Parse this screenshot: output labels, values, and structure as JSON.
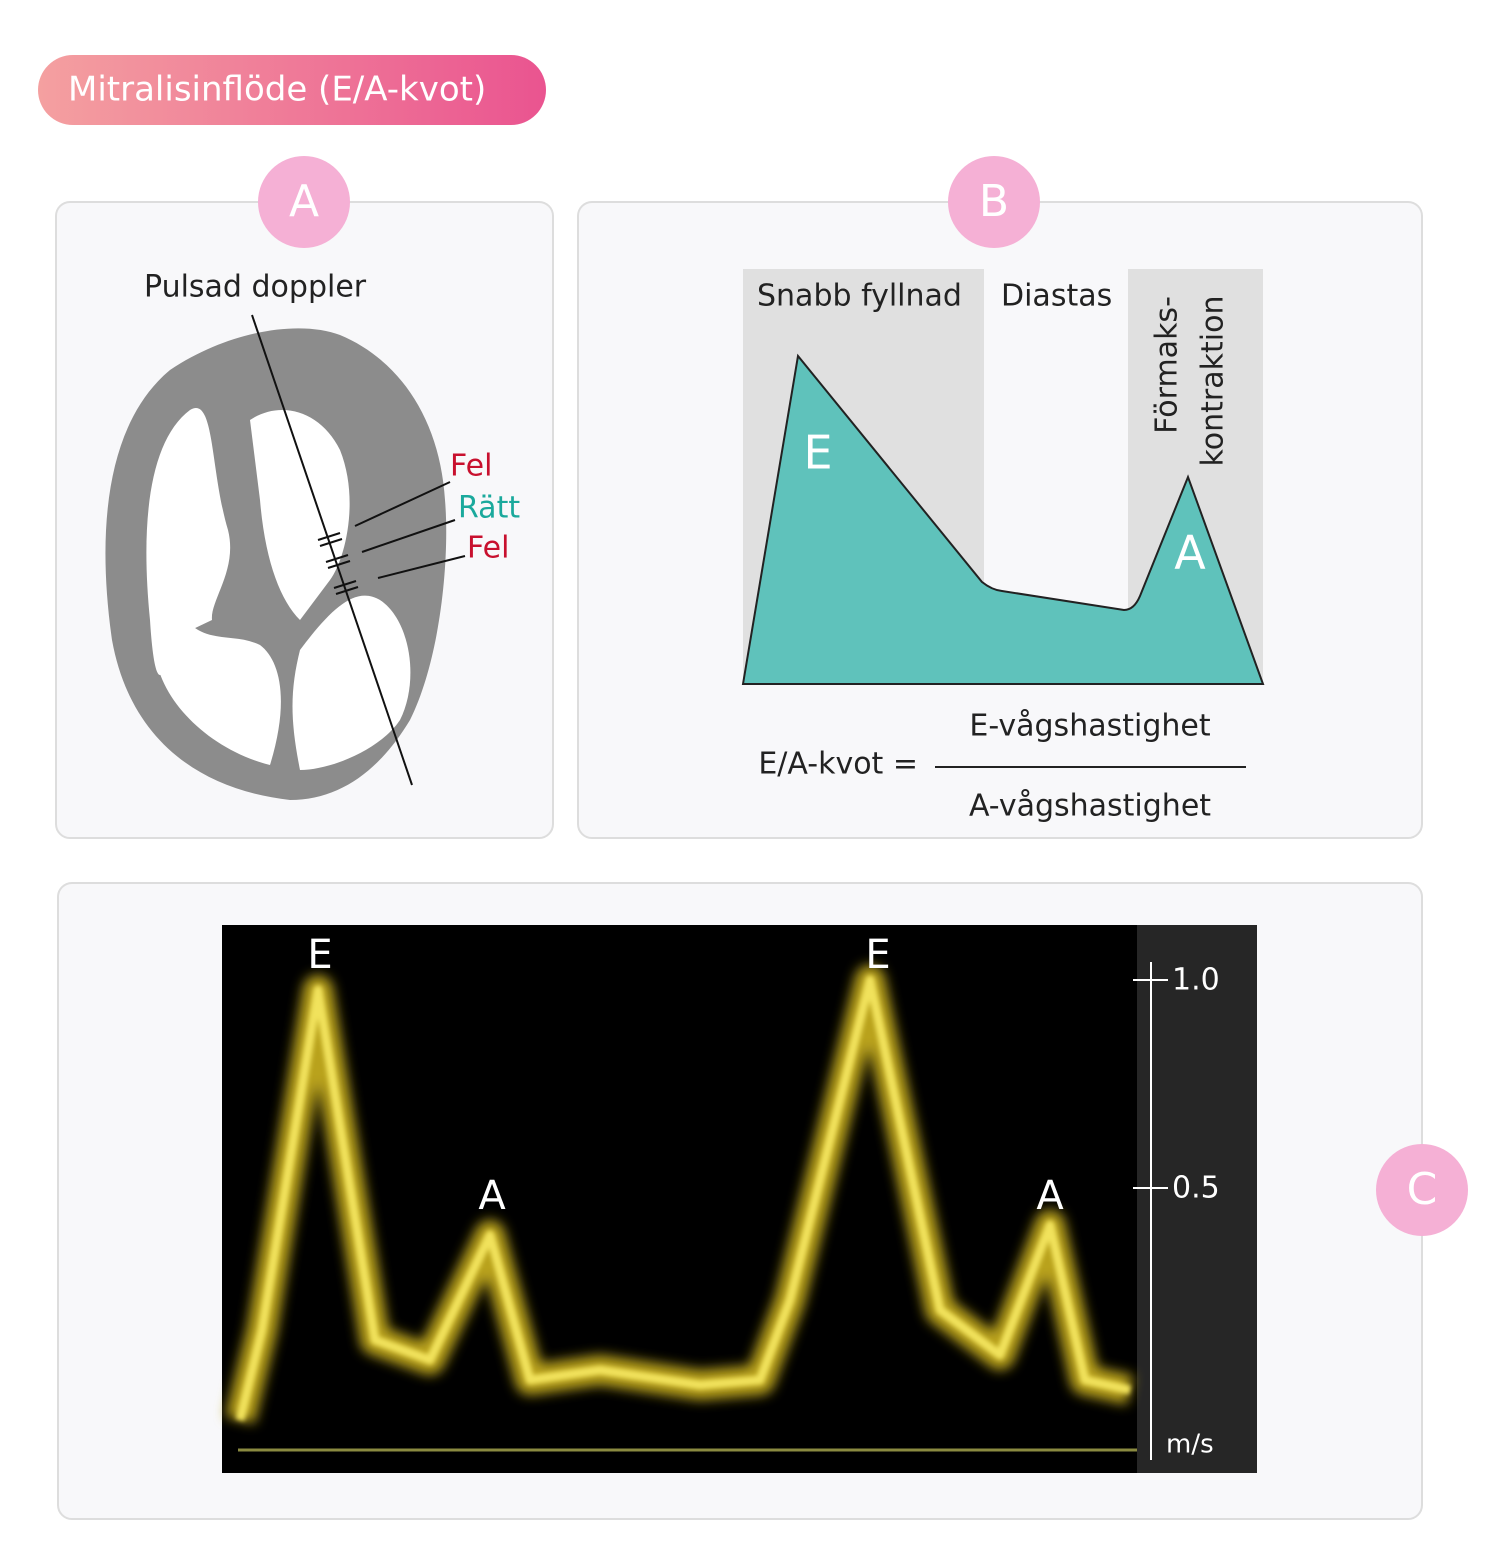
{
  "header": {
    "title": "Mitralisinflöde (E/A-kvot)"
  },
  "panels": [
    {
      "label": "A",
      "probe_label": "Pulsad doppler",
      "positions": [
        "Fel",
        "Rätt",
        "Fel"
      ]
    },
    {
      "label": "B",
      "phases": [
        "Snabb fyllnad",
        "Diastas"
      ],
      "phase_3_lines": [
        "Förmaks-",
        "kontraktion"
      ],
      "waves": [
        "E",
        "A"
      ],
      "formula": {
        "lhs": "E/A-kvot =",
        "numerator": "E-vågshastighet",
        "denominator": "A-vågshastighet"
      }
    },
    {
      "label": "C",
      "waves": [
        "E",
        "A",
        "E",
        "A"
      ],
      "scale": {
        "ticks": [
          "1.0",
          "0.5"
        ],
        "unit": "m/s"
      }
    }
  ]
}
